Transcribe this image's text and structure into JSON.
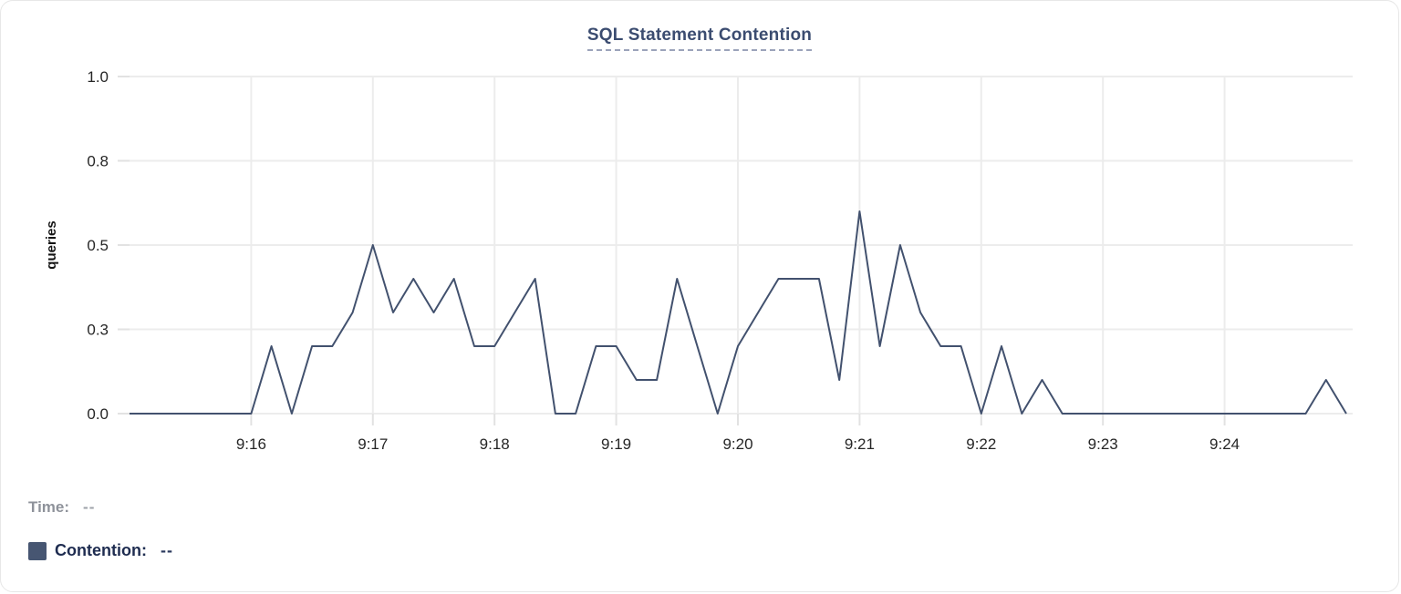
{
  "legend": {
    "time_label": "Time:",
    "time_value": "--",
    "contention_label": "Contention:",
    "contention_value": "--",
    "swatch_color": "#475672"
  },
  "colors": {
    "title": "#3b4c70",
    "title_underline": "#9ba3ba",
    "grid": "#ececec",
    "tick": "#e2e2e2",
    "axis_text": "#262626",
    "line": "#42516e"
  },
  "chart_data": {
    "type": "line",
    "title": "SQL Statement Contention",
    "ylabel": "queries",
    "xlabel": "",
    "ylim": [
      0,
      1
    ],
    "grid": true,
    "legend_position": "bottom-left",
    "x_range": [
      "9:15:00",
      "9:25:00"
    ],
    "sample_interval_seconds": 10,
    "y_ticks": [
      {
        "value": 0.0,
        "label": "0.0"
      },
      {
        "value": 0.25,
        "label": "0.3"
      },
      {
        "value": 0.5,
        "label": "0.5"
      },
      {
        "value": 0.75,
        "label": "0.8"
      },
      {
        "value": 1.0,
        "label": "1.0"
      }
    ],
    "x_ticks": [
      {
        "minutes_from_start": 1,
        "label": "9:16"
      },
      {
        "minutes_from_start": 2,
        "label": "9:17"
      },
      {
        "minutes_from_start": 3,
        "label": "9:18"
      },
      {
        "minutes_from_start": 4,
        "label": "9:19"
      },
      {
        "minutes_from_start": 5,
        "label": "9:20"
      },
      {
        "minutes_from_start": 6,
        "label": "9:21"
      },
      {
        "minutes_from_start": 7,
        "label": "9:22"
      },
      {
        "minutes_from_start": 8,
        "label": "9:23"
      },
      {
        "minutes_from_start": 9,
        "label": "9:24"
      }
    ],
    "series": [
      {
        "name": "Contention",
        "color": "#42516e",
        "times": [
          "9:15:00",
          "9:15:10",
          "9:15:20",
          "9:15:30",
          "9:15:40",
          "9:15:50",
          "9:16:00",
          "9:16:10",
          "9:16:20",
          "9:16:30",
          "9:16:40",
          "9:16:50",
          "9:17:00",
          "9:17:10",
          "9:17:20",
          "9:17:30",
          "9:17:40",
          "9:17:50",
          "9:18:00",
          "9:18:10",
          "9:18:20",
          "9:18:30",
          "9:18:40",
          "9:18:50",
          "9:19:00",
          "9:19:10",
          "9:19:20",
          "9:19:30",
          "9:19:40",
          "9:19:50",
          "9:20:00",
          "9:20:10",
          "9:20:20",
          "9:20:30",
          "9:20:40",
          "9:20:50",
          "9:21:00",
          "9:21:10",
          "9:21:20",
          "9:21:30",
          "9:21:40",
          "9:21:50",
          "9:22:00",
          "9:22:10",
          "9:22:20",
          "9:22:30",
          "9:22:40",
          "9:22:50",
          "9:23:00",
          "9:23:10",
          "9:23:20",
          "9:23:30",
          "9:23:40",
          "9:23:50",
          "9:24:00",
          "9:24:10",
          "9:24:20",
          "9:24:30",
          "9:24:40",
          "9:24:50",
          "9:25:00"
        ],
        "values": [
          0,
          0,
          0,
          0,
          0,
          0,
          0,
          0.2,
          0,
          0.2,
          0.2,
          0.3,
          0.5,
          0.3,
          0.4,
          0.3,
          0.4,
          0.2,
          0.2,
          0.3,
          0.4,
          0,
          0,
          0.2,
          0.2,
          0.1,
          0.1,
          0.4,
          0.2,
          0,
          0.2,
          0.3,
          0.4,
          0.4,
          0.4,
          0.1,
          0.6,
          0.2,
          0.5,
          0.3,
          0.2,
          0.2,
          0,
          0.2,
          0,
          0.1,
          0,
          0,
          0,
          0,
          0,
          0,
          0,
          0,
          0,
          0,
          0,
          0,
          0,
          0.1,
          0
        ]
      }
    ]
  }
}
